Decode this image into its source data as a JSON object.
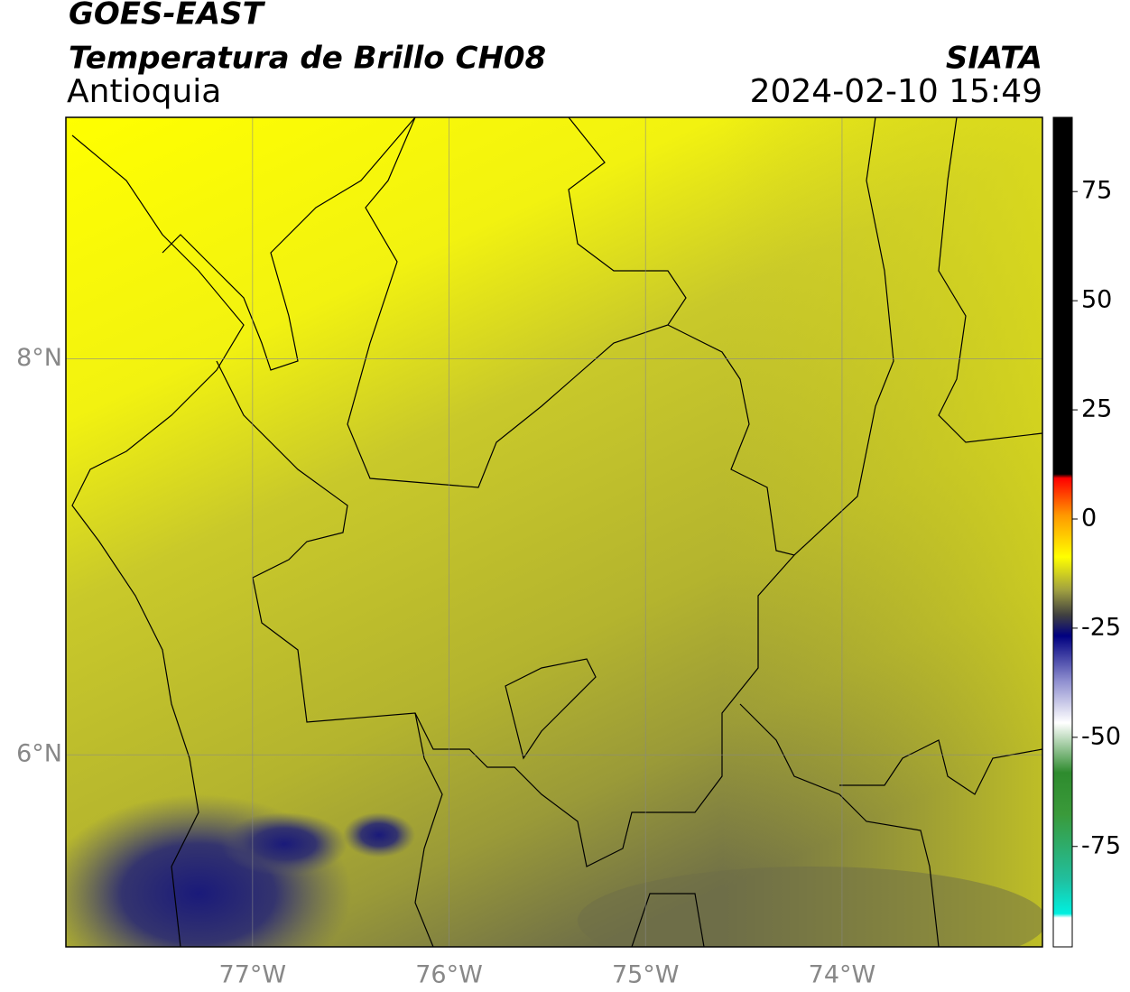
{
  "header": {
    "title": "GOES-EAST",
    "subtitle": "Temperatura de Brillo CH08",
    "region": "Antioquia",
    "source": "SIATA",
    "datetime": "2024-02-10 15:49"
  },
  "map": {
    "xlim": [
      -77.95,
      -72.98
    ],
    "ylim": [
      5.03,
      9.22
    ],
    "xticks": [
      {
        "value": -77,
        "label": "77°W"
      },
      {
        "value": -76,
        "label": "76°W"
      },
      {
        "value": -75,
        "label": "75°W"
      },
      {
        "value": -74,
        "label": "74°W"
      }
    ],
    "yticks": [
      {
        "value": 8,
        "label": "8°N"
      },
      {
        "value": 6,
        "label": "6°N"
      }
    ],
    "grid": true
  },
  "colorbar": {
    "clim": [
      -98,
      92
    ],
    "ticks": [
      75,
      50,
      25,
      0,
      -25,
      -50,
      -75
    ]
  }
}
